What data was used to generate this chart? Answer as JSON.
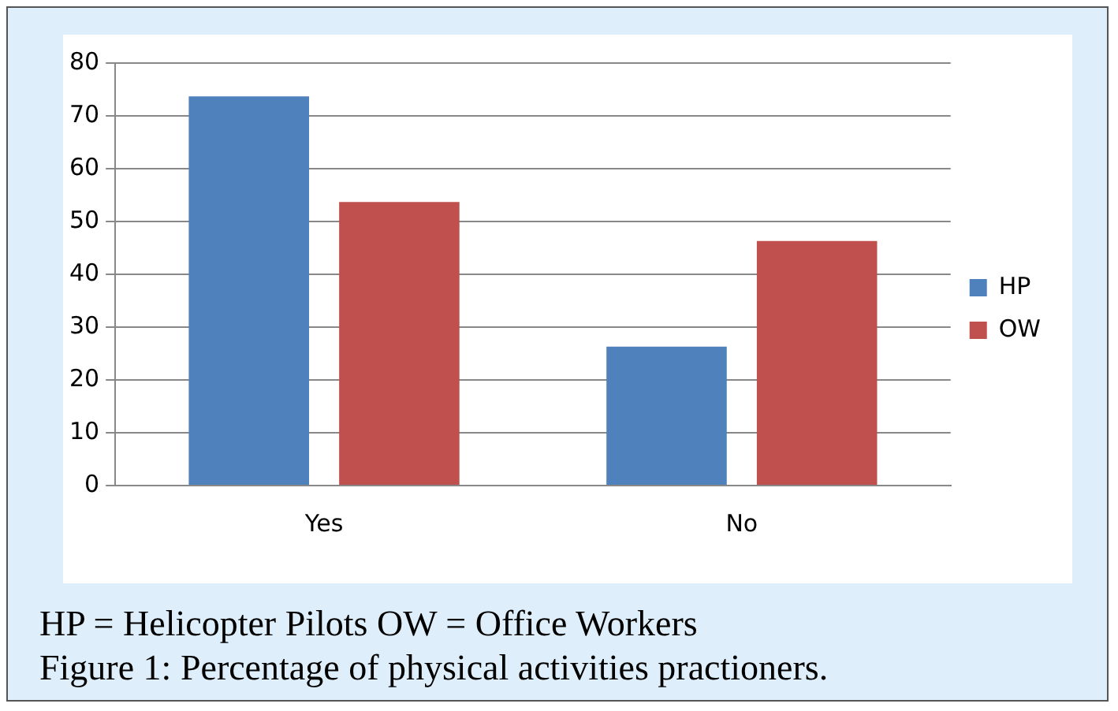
{
  "chart_data": {
    "type": "bar",
    "categories": [
      "Yes",
      "No"
    ],
    "series": [
      {
        "name": "HP",
        "color": "#4f81bd",
        "values": [
          73.7,
          26.3
        ]
      },
      {
        "name": "OW",
        "color": "#c0504d",
        "values": [
          53.7,
          46.3
        ]
      }
    ],
    "ylim": [
      0,
      80
    ],
    "yticks": [
      0,
      10,
      20,
      30,
      40,
      50,
      60,
      70,
      80
    ],
    "grid": "y",
    "legend": "right",
    "annotations": [
      "HP = Helicopter Pilots OW = Office Workers",
      "Figure 1: Percentage of physical activities practioners."
    ]
  }
}
